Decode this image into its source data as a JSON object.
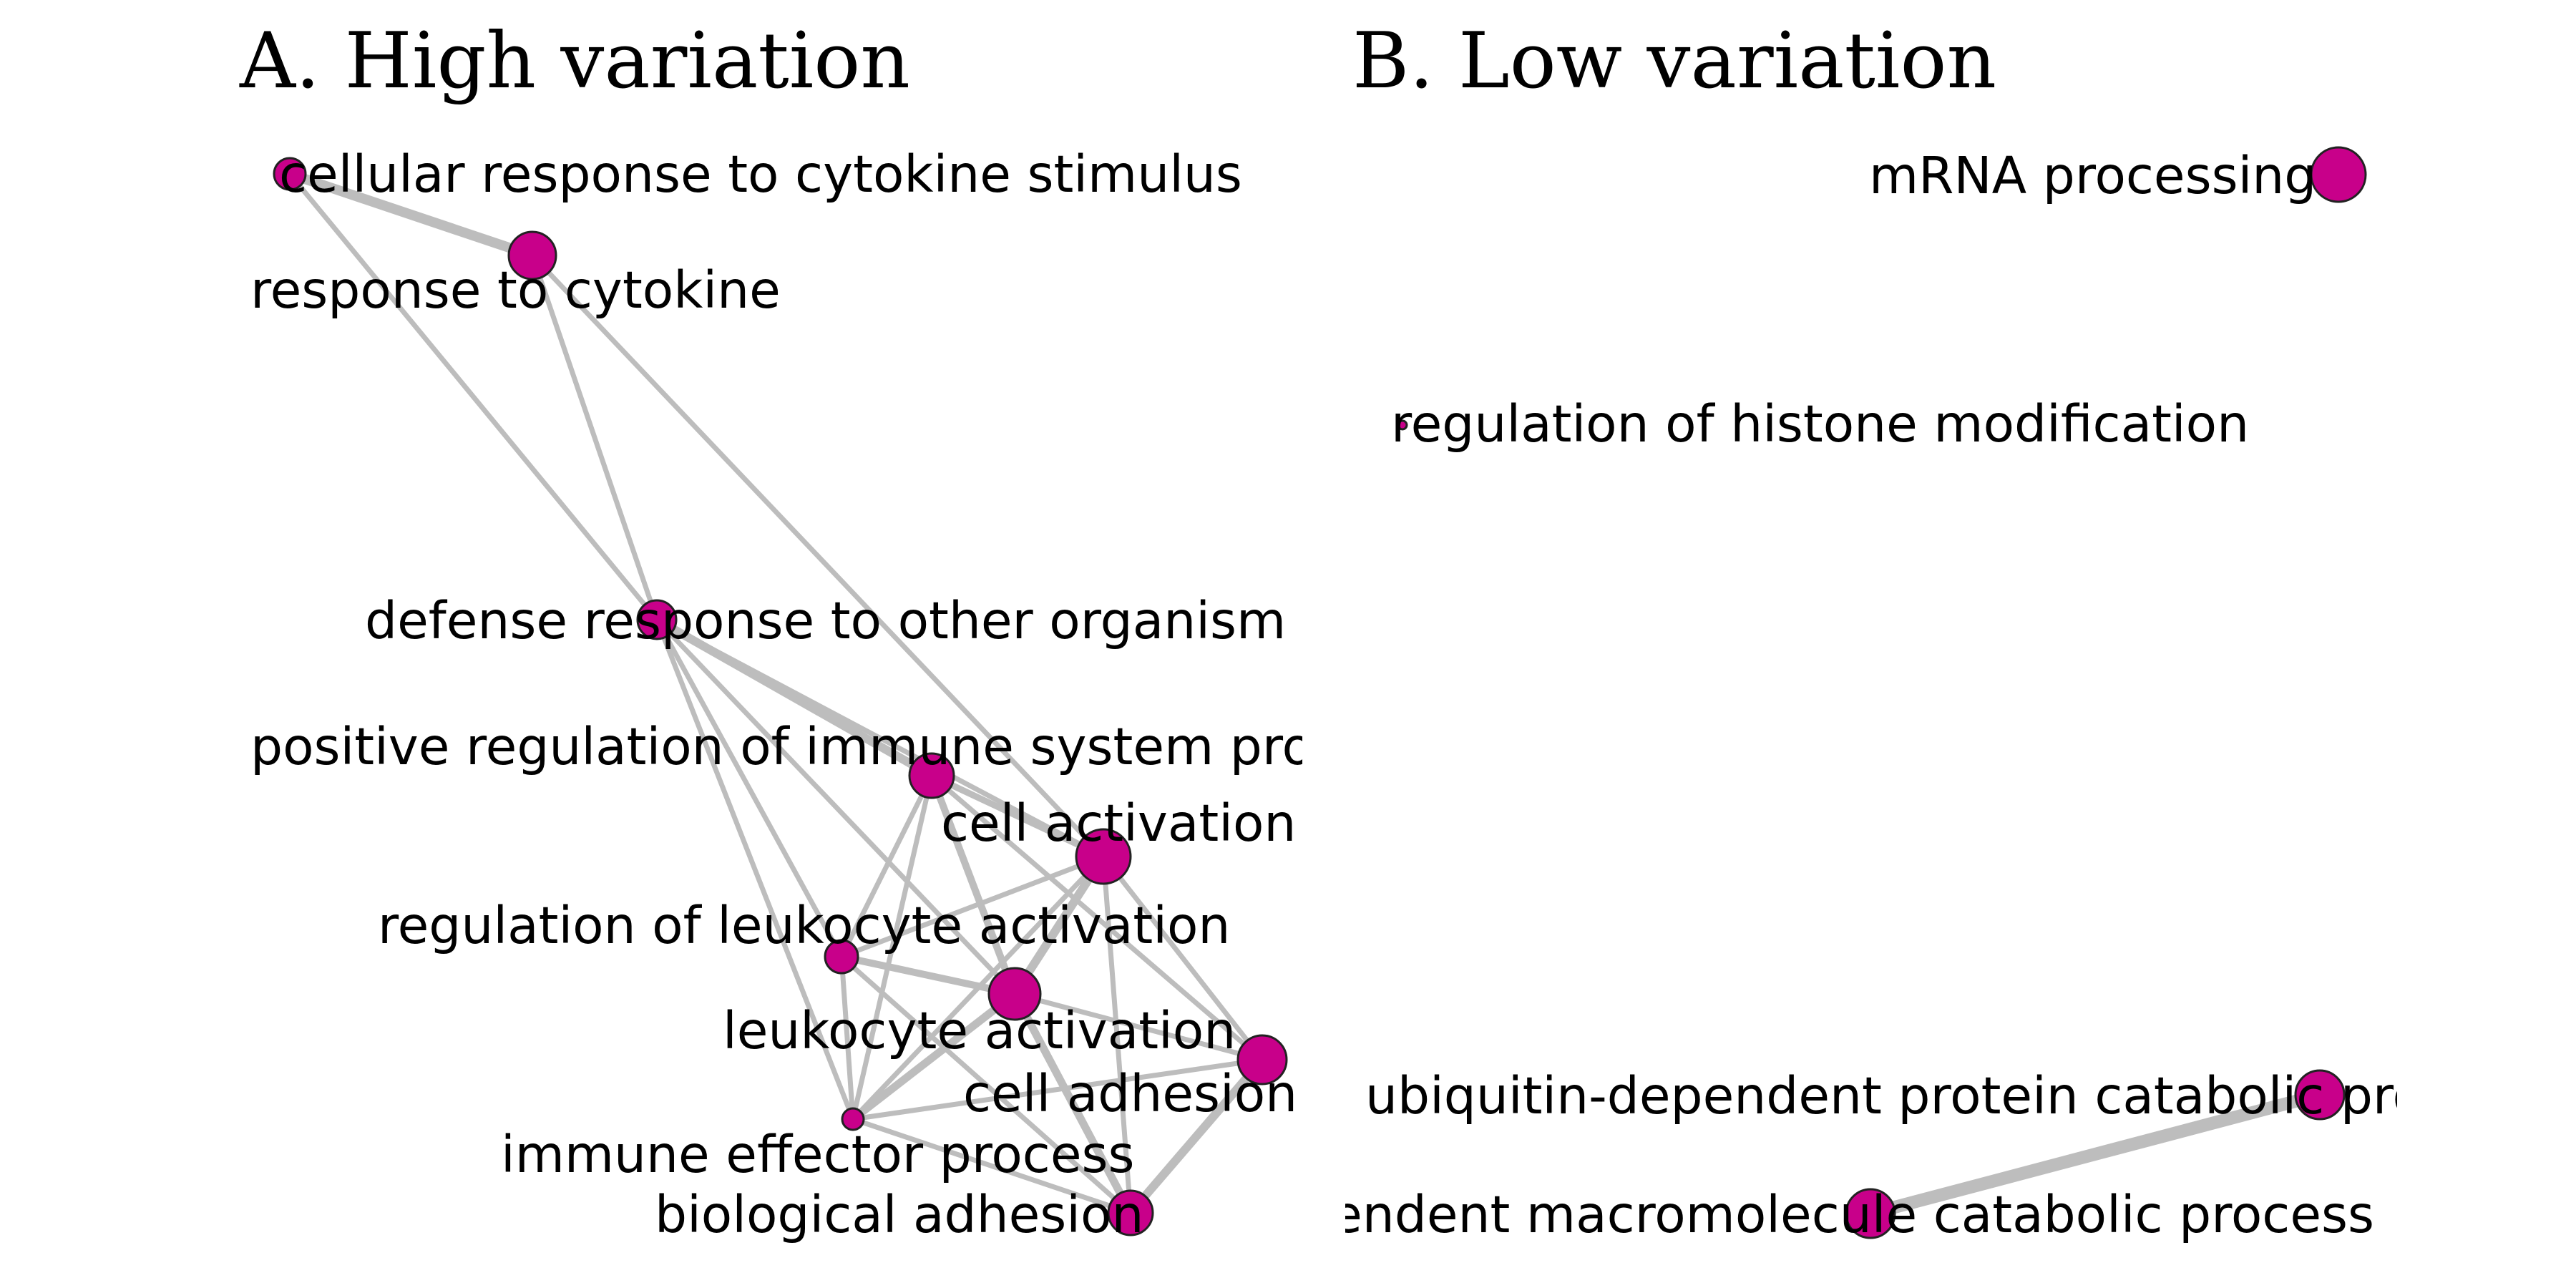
{
  "colors": {
    "node_fill": "#c8008a",
    "node_stroke": "#222222",
    "edge": "#bdbdbd",
    "background": "#ffffff"
  },
  "panels": [
    {
      "id": "A",
      "title": "A. High variation",
      "nodes": [
        {
          "id": "crcs",
          "label": "cellular response to cytokine stimulus"
        },
        {
          "id": "rtc",
          "label": "response to cytokine"
        },
        {
          "id": "drto",
          "label": "defense response to other organism"
        },
        {
          "id": "pris",
          "label": "positive regulation of immune system process"
        },
        {
          "id": "ca",
          "label": "cell activation"
        },
        {
          "id": "rola",
          "label": "regulation of leukocyte activation"
        },
        {
          "id": "la",
          "label": "leukocyte activation"
        },
        {
          "id": "cad",
          "label": "cell adhesion"
        },
        {
          "id": "iep",
          "label": "immune effector process"
        },
        {
          "id": "ba",
          "label": "biological adhesion"
        }
      ],
      "edges": [
        [
          "crcs",
          "rtc"
        ],
        [
          "crcs",
          "drto"
        ],
        [
          "rtc",
          "drto"
        ],
        [
          "rtc",
          "ca"
        ],
        [
          "drto",
          "pris"
        ],
        [
          "drto",
          "ca"
        ],
        [
          "drto",
          "rola"
        ],
        [
          "drto",
          "la"
        ],
        [
          "drto",
          "iep"
        ],
        [
          "pris",
          "ca"
        ],
        [
          "pris",
          "rola"
        ],
        [
          "pris",
          "la"
        ],
        [
          "pris",
          "iep"
        ],
        [
          "pris",
          "cad"
        ],
        [
          "ca",
          "rola"
        ],
        [
          "ca",
          "la"
        ],
        [
          "ca",
          "iep"
        ],
        [
          "ca",
          "cad"
        ],
        [
          "ca",
          "ba"
        ],
        [
          "rola",
          "la"
        ],
        [
          "rola",
          "iep"
        ],
        [
          "rola",
          "ba"
        ],
        [
          "la",
          "iep"
        ],
        [
          "la",
          "cad"
        ],
        [
          "la",
          "ba"
        ],
        [
          "cad",
          "iep"
        ],
        [
          "cad",
          "ba"
        ],
        [
          "iep",
          "ba"
        ]
      ]
    },
    {
      "id": "B",
      "title": "B. Low variation",
      "nodes": [
        {
          "id": "mrna",
          "label": "mRNA processing"
        },
        {
          "id": "rhm",
          "label": "regulation of histone modification"
        },
        {
          "id": "udpc",
          "label": "ubiquitin-dependent protein catabolic process"
        },
        {
          "id": "mcp",
          "label": "modification-dependent macromolecule catabolic process"
        }
      ],
      "edges": [
        [
          "udpc",
          "mcp"
        ]
      ]
    }
  ]
}
